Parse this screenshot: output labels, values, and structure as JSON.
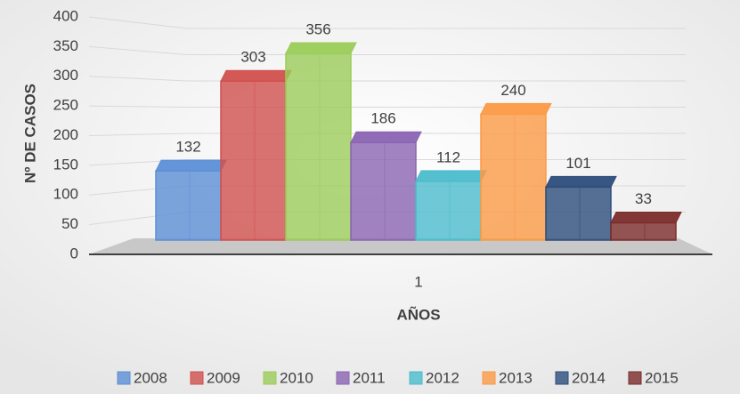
{
  "chart_data": {
    "type": "bar3d",
    "categories": [
      "1"
    ],
    "xlabel": "AÑOS",
    "ylabel": "Nº DE CASOS",
    "ylim": [
      0,
      400
    ],
    "yticks": [
      0,
      50,
      100,
      150,
      200,
      250,
      300,
      350,
      400
    ],
    "grid": true,
    "legend": "bottom",
    "series": [
      {
        "name": "2008",
        "color": "#5b8fd6",
        "values": [
          132
        ]
      },
      {
        "name": "2009",
        "color": "#d0504d",
        "values": [
          303
        ]
      },
      {
        "name": "2010",
        "color": "#9bcc59",
        "values": [
          356
        ]
      },
      {
        "name": "2011",
        "color": "#8a64b2",
        "values": [
          186
        ]
      },
      {
        "name": "2012",
        "color": "#4bbccc",
        "values": [
          112
        ]
      },
      {
        "name": "2013",
        "color": "#fb9a46",
        "values": [
          240
        ]
      },
      {
        "name": "2014",
        "color": "#2c4d7a",
        "values": [
          101
        ]
      },
      {
        "name": "2015",
        "color": "#7a2c2a",
        "values": [
          33
        ]
      }
    ]
  }
}
